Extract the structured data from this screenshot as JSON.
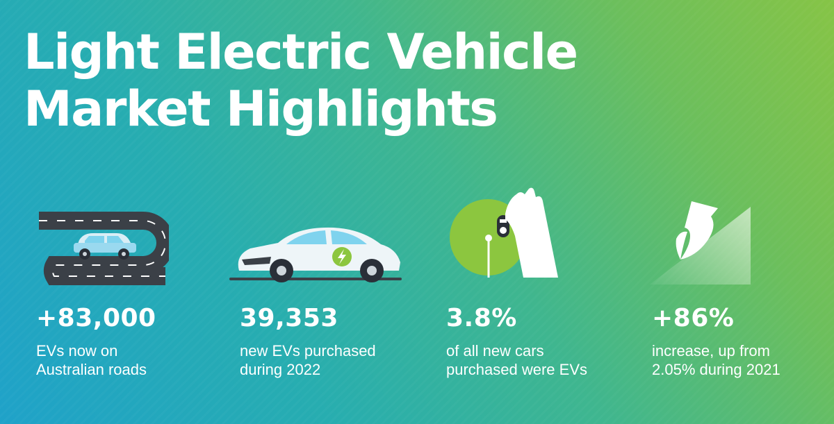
{
  "header": {
    "title_line1": "Light Electric Vehicle",
    "title_line2": "Market Highlights"
  },
  "stats": [
    {
      "value": "+83,000",
      "desc_line1": "EVs now on",
      "desc_line2": "Australian roads",
      "icon": "winding-road-car-icon"
    },
    {
      "value": "39,353",
      "desc_line1": "new EVs purchased",
      "desc_line2": "during 2022",
      "icon": "electric-car-icon"
    },
    {
      "value": "3.8%",
      "desc_line1": "of all new cars",
      "desc_line2": "purchased were EVs",
      "icon": "hand-key-icon"
    },
    {
      "value": "+86%",
      "desc_line1": "increase, up from",
      "desc_line2": "2.05% during 2021",
      "icon": "growth-arrow-icon"
    }
  ],
  "colors": {
    "road": "#3b4047",
    "accent_green": "#8cc63f",
    "car_body": "#eef5f8",
    "window_blue": "#7fd3ee"
  }
}
